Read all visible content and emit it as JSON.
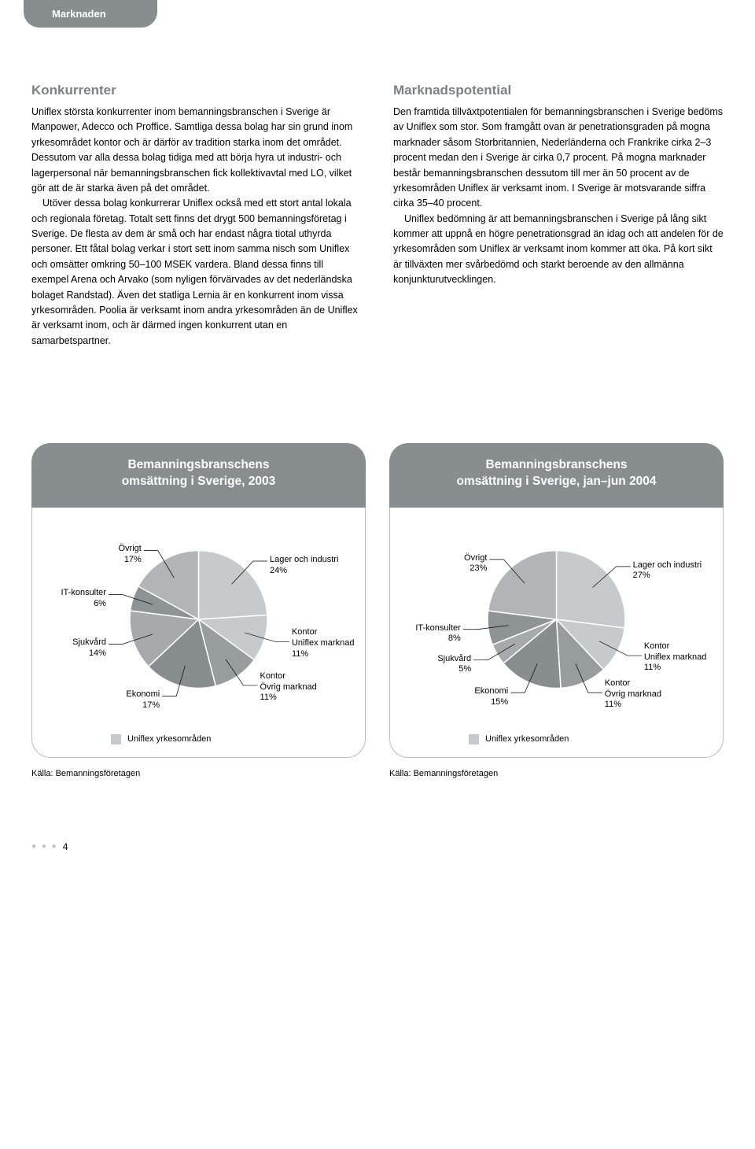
{
  "tab": "Marknaden",
  "left": {
    "heading": "Konkurrenter",
    "p1": "Uniflex största konkurrenter inom bemanningsbranschen i Sverige är Manpower, Adecco och Proffice. Samtliga dessa bolag har sin grund inom yrkesområdet kontor och är därför av tradition starka inom det området. Dessutom var alla dessa bolag tidiga med att börja hyra ut industri- och lagerpersonal när bemanningsbranschen fick kollektivavtal med LO, vilket gör att de är starka även på det området.",
    "p2": "Utöver dessa bolag konkurrerar Uniflex också med ett stort antal lokala och regionala företag. Totalt sett finns det drygt 500 bemanningsföretag i Sverige. De flesta av dem är små och har endast några tiotal uthyrda personer. Ett fåtal bolag verkar i stort sett inom samma nisch som Uniflex och omsätter omkring 50–100 MSEK vardera. Bland dessa finns till exempel Arena och Arvako (som nyligen förvärvades av det nederländska bolaget Randstad). Även det statliga Lernia är en konkurrent inom vissa yrkesområden. Poolia är verksamt inom andra yrkesområden än de Uniflex är verksamt inom, och är därmed ingen konkurrent utan en samarbetspartner."
  },
  "right": {
    "heading": "Marknadspotential",
    "p1": "Den framtida tillväxtpotentialen för bemanningsbranschen i Sverige bedöms av Uniflex som stor. Som framgått ovan är penetrationsgraden på mogna marknader såsom Storbritannien, Nederländerna och Frankrike cirka 2–3 procent medan den i Sverige är cirka 0,7 procent. På mogna marknader består bemanningsbranschen dessutom till mer än 50 procent av de yrkesområden Uniflex är verksamt inom. I Sverige är motsvarande siffra cirka 35–40 procent.",
    "p2": "Uniflex bedömning är att bemanningsbranschen i Sverige på lång sikt kommer att uppnå en högre penetrationsgrad än idag och att andelen för de yrkesområden som Uniflex är verksamt inom kommer att öka. På kort sikt är tillväxten mer svårbedömd och starkt beroende av den allmänna konjunkturutvecklingen."
  },
  "chart1": {
    "type": "pie",
    "title_line1": "Bemanningsbranschens",
    "title_line2": "omsättning i Sverige, 2003",
    "slices": [
      {
        "label": "Lager och industri",
        "pct": 24,
        "color": "#c7cacc",
        "uniflex": true
      },
      {
        "label": "Kontor\nUniflex marknad",
        "pct": 11,
        "color": "#c7cacc",
        "uniflex": true
      },
      {
        "label": "Kontor\nÖvrig marknad",
        "pct": 11,
        "color": "#979c9f",
        "uniflex": false
      },
      {
        "label": "Ekonomi",
        "pct": 17,
        "color": "#888d90",
        "uniflex": false
      },
      {
        "label": "Sjukvård",
        "pct": 14,
        "color": "#a6aaad",
        "uniflex": false
      },
      {
        "label": "IT-konsulter",
        "pct": 6,
        "color": "#8e9396",
        "uniflex": false
      },
      {
        "label": "Övrigt",
        "pct": 17,
        "color": "#b1b5b7",
        "uniflex": false
      }
    ],
    "legend": "Uniflex yrkesområden",
    "legend_color": "#c7cacc",
    "source": "Källa: Bemanningsföretagen",
    "stroke": "#ffffff",
    "diameter": 175
  },
  "chart2": {
    "type": "pie",
    "title_line1": "Bemanningsbranschens",
    "title_line2": "omsättning i Sverige, jan–jun 2004",
    "slices": [
      {
        "label": "Lager och industri",
        "pct": 27,
        "color": "#c7cacc",
        "uniflex": true
      },
      {
        "label": "Kontor\nUniflex marknad",
        "pct": 11,
        "color": "#c7cacc",
        "uniflex": true
      },
      {
        "label": "Kontor\nÖvrig marknad",
        "pct": 11,
        "color": "#979c9f",
        "uniflex": false
      },
      {
        "label": "Ekonomi",
        "pct": 15,
        "color": "#888d90",
        "uniflex": false
      },
      {
        "label": "Sjukvård",
        "pct": 5,
        "color": "#a6aaad",
        "uniflex": false
      },
      {
        "label": "IT-konsulter",
        "pct": 8,
        "color": "#8e9396",
        "uniflex": false
      },
      {
        "label": "Övrigt",
        "pct": 23,
        "color": "#b1b5b7",
        "uniflex": false
      }
    ],
    "legend": "Uniflex yrkesområden",
    "legend_color": "#c7cacc",
    "source": "Källa: Bemanningsföretagen",
    "stroke": "#ffffff",
    "diameter": 175
  },
  "page_number": "4"
}
